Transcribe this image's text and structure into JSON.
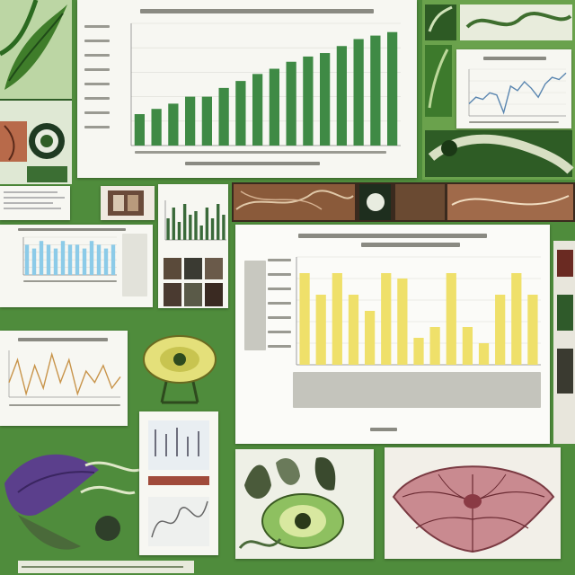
{
  "colors": {
    "background": "#4f8c3c",
    "green_bar": "#3f8a45",
    "yellow_bar": "#efe06a",
    "blue_bar": "#8ccbe8",
    "line_orange": "#c8944a",
    "line_blue": "#5a86b0",
    "card": "#f7f7f2"
  },
  "icons": [
    "leaf-icon",
    "leaf-eye-icon",
    "flower-icon",
    "seed-pod-icon"
  ],
  "chart_data": [
    {
      "type": "bar",
      "color": "#3f8a45",
      "values": [
        18,
        21,
        24,
        28,
        28,
        33,
        37,
        41,
        44,
        48,
        51,
        53,
        57,
        61,
        63,
        65
      ],
      "ylim": [
        0,
        70
      ],
      "grid": true,
      "legend": "none"
    },
    {
      "type": "bar",
      "color": "#efe06a",
      "values": [
        17,
        13,
        17,
        13,
        10,
        17,
        16,
        5,
        7,
        17,
        7,
        4,
        13,
        17,
        13
      ],
      "ylim": [
        0,
        20
      ],
      "grid": true,
      "legend": "none"
    },
    {
      "type": "line",
      "color": "#5a86b0",
      "values": [
        30,
        33,
        32,
        35,
        34,
        26,
        38,
        36,
        40,
        37,
        33,
        39,
        42,
        41,
        44
      ],
      "grid": true
    },
    {
      "type": "bar",
      "color": "#8ccbe8",
      "values": [
        8,
        7,
        9,
        8,
        7,
        9,
        8,
        8,
        7,
        9,
        8,
        7,
        8
      ],
      "ylim": [
        0,
        10
      ],
      "grid": true
    },
    {
      "type": "line",
      "color": "#c8944a",
      "values": [
        12,
        16,
        10,
        15,
        11,
        17,
        12,
        16,
        10,
        14,
        12,
        15,
        11,
        13
      ],
      "grid": false
    },
    {
      "type": "bar",
      "color": "#3a6a3a",
      "values": [
        6,
        9,
        5,
        10,
        7,
        8,
        4,
        9,
        6,
        10,
        7
      ],
      "grid": false
    }
  ]
}
